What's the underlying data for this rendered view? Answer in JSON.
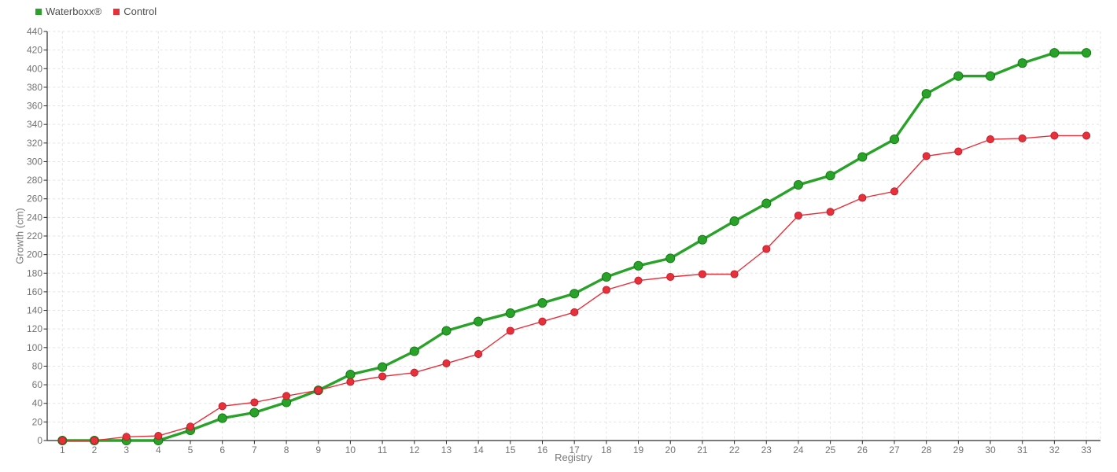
{
  "legend": {
    "items": [
      {
        "label": "Waterboxx®",
        "color": "#28a228"
      },
      {
        "label": "Control",
        "color": "#e8303a"
      }
    ]
  },
  "chart_data": {
    "type": "line",
    "title": "",
    "xlabel": "Registry",
    "ylabel": "Growth (cm)",
    "x": [
      1,
      2,
      3,
      4,
      5,
      6,
      7,
      8,
      9,
      10,
      11,
      12,
      13,
      14,
      15,
      16,
      17,
      18,
      19,
      20,
      21,
      22,
      23,
      24,
      25,
      26,
      27,
      28,
      29,
      30,
      31,
      32,
      33
    ],
    "series": [
      {
        "name": "Waterboxx®",
        "color": "#28a228",
        "point_stroke": "#137813",
        "line_width": 3.4,
        "point_radius": 5.6,
        "values": [
          0,
          0,
          0,
          0,
          11,
          24,
          30,
          41,
          54,
          71,
          79,
          96,
          118,
          128,
          137,
          148,
          158,
          176,
          188,
          196,
          216,
          236,
          255,
          275,
          285,
          305,
          324,
          373,
          392,
          392,
          406,
          417,
          417
        ]
      },
      {
        "name": "Control",
        "color": "#e8303a",
        "point_stroke": "#b91f2e",
        "line_width": 1.4,
        "point_radius": 4.6,
        "values": [
          0,
          0,
          4,
          5,
          15,
          37,
          41,
          48,
          54,
          63,
          69,
          73,
          83,
          93,
          118,
          128,
          138,
          162,
          172,
          176,
          179,
          179,
          206,
          242,
          246,
          261,
          268,
          306,
          311,
          324,
          325,
          328,
          328
        ]
      }
    ],
    "ylim": [
      0,
      440
    ],
    "ytick_step": 20,
    "grid": true,
    "legend_position": "top-left"
  },
  "style": {
    "grid_color": "#e3e3e3",
    "axis_color": "#2b2b2b",
    "tick_label_color": "#737373",
    "axis_title_color": "#7a7a7a",
    "legend_text_color": "#4d4d4d",
    "background": "#ffffff"
  }
}
